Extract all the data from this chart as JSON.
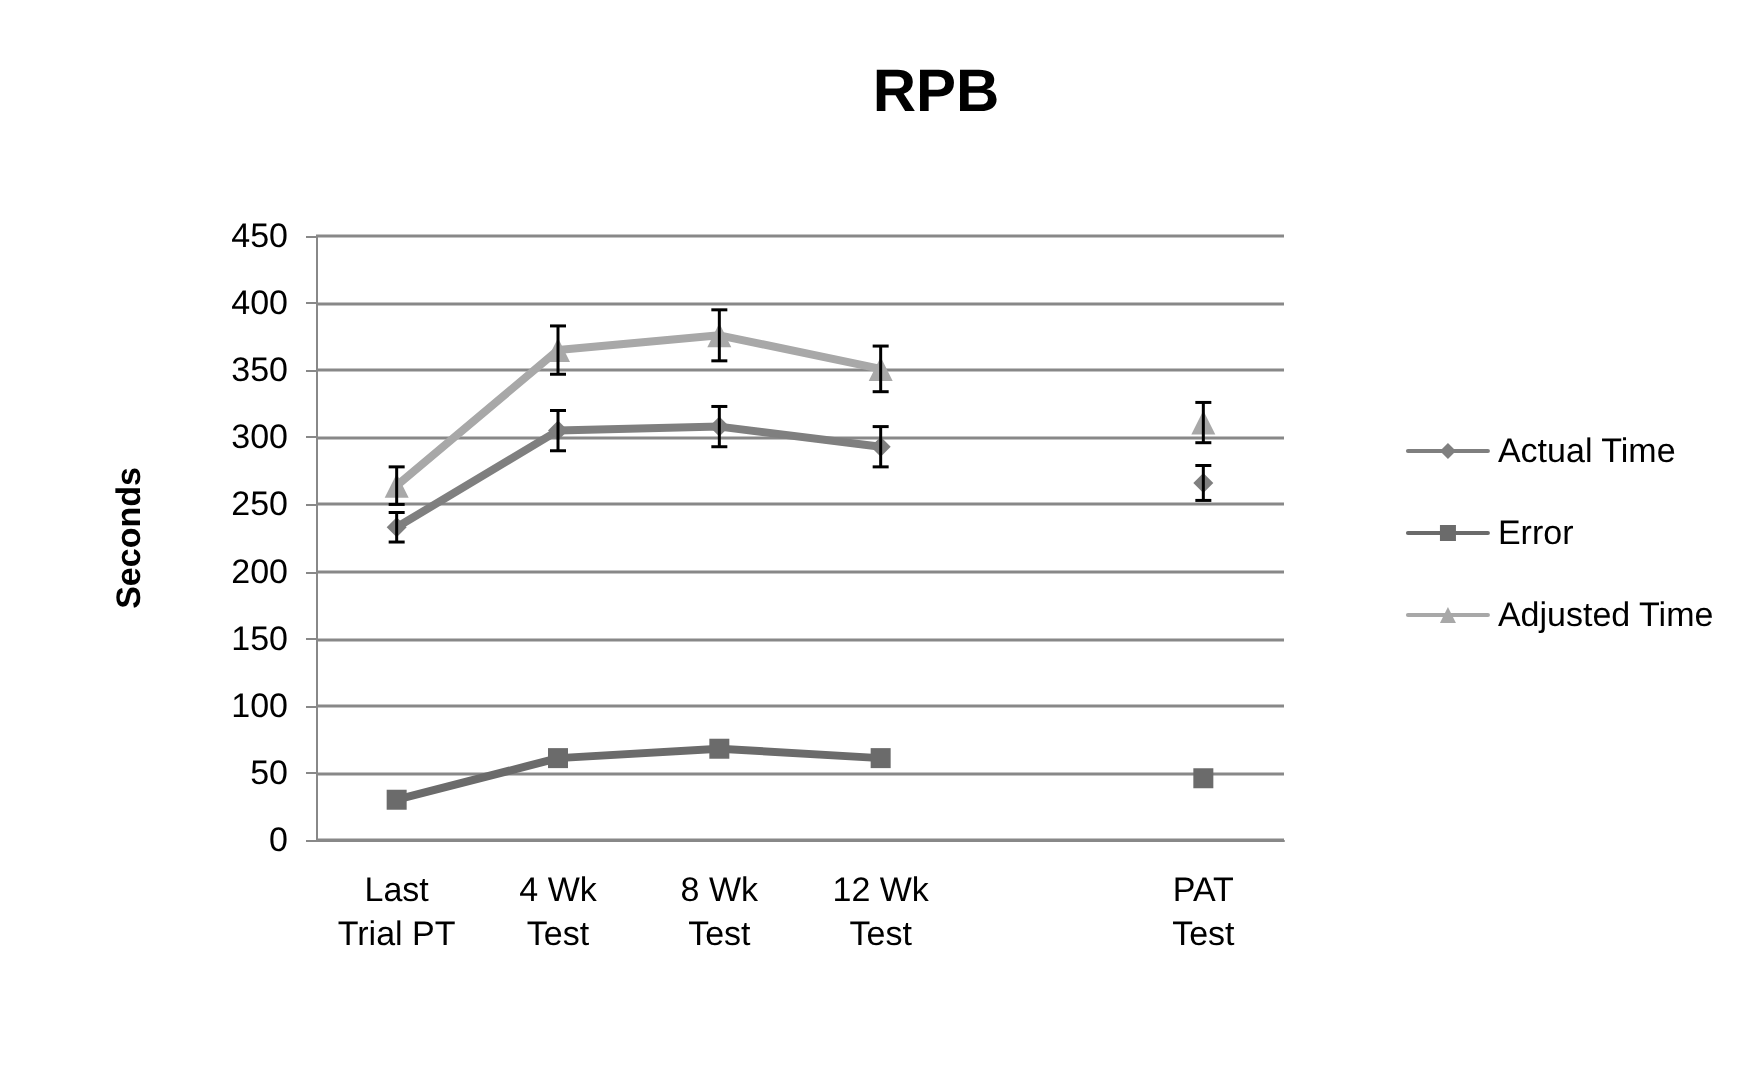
{
  "chart_data": {
    "type": "line",
    "title": "RPB",
    "ylabel": "Seconds",
    "categories": [
      "Last Trial PT",
      "4 Wk Test",
      "8 Wk Test",
      "12 Wk Test",
      null,
      "PAT Test"
    ],
    "series": [
      {
        "name": "Actual Time",
        "color": "#7f7f7f",
        "marker": "diamond",
        "values": [
          233,
          305,
          308,
          293,
          null,
          266
        ],
        "errors": [
          11,
          15,
          15,
          15,
          null,
          13
        ]
      },
      {
        "name": "Error",
        "color": "#6b6b6b",
        "marker": "square",
        "values": [
          30,
          61,
          68,
          61,
          null,
          46
        ]
      },
      {
        "name": "Adjusted Time",
        "color": "#a8a8a8",
        "marker": "triangle",
        "values": [
          264,
          365,
          376,
          351,
          null,
          311
        ],
        "errors": [
          14,
          18,
          19,
          17,
          null,
          15
        ]
      }
    ],
    "ylim": [
      0,
      450
    ],
    "yticks": [
      0,
      50,
      100,
      150,
      200,
      250,
      300,
      350,
      400,
      450
    ],
    "grid": "y",
    "legend": "right",
    "line_style": "solid"
  }
}
